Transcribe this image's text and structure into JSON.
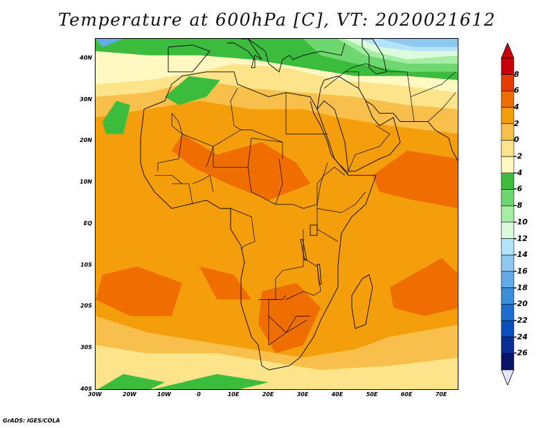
{
  "title": "Temperature at 600hPa [C], VT: 2020021612",
  "credit": "GrADS: IGES/COLA",
  "map": {
    "lon_range": [
      -30,
      75
    ],
    "lat_range": [
      -40,
      45
    ],
    "lat_ticks": [
      {
        "value": 40,
        "label": "40N"
      },
      {
        "value": 30,
        "label": "30N"
      },
      {
        "value": 20,
        "label": "20N"
      },
      {
        "value": 10,
        "label": "10N"
      },
      {
        "value": 0,
        "label": "EQ"
      },
      {
        "value": -10,
        "label": "10S"
      },
      {
        "value": -20,
        "label": "20S"
      },
      {
        "value": -30,
        "label": "30S"
      },
      {
        "value": -40,
        "label": "40S"
      }
    ],
    "lon_ticks": [
      {
        "value": -30,
        "label": "30W"
      },
      {
        "value": -20,
        "label": "20W"
      },
      {
        "value": -10,
        "label": "10W"
      },
      {
        "value": 0,
        "label": "0"
      },
      {
        "value": 10,
        "label": "10E"
      },
      {
        "value": 20,
        "label": "20E"
      },
      {
        "value": 30,
        "label": "30E"
      },
      {
        "value": 40,
        "label": "40E"
      },
      {
        "value": 50,
        "label": "50E"
      },
      {
        "value": 60,
        "label": "60E"
      },
      {
        "value": 70,
        "label": "70E"
      }
    ]
  },
  "colorbar": {
    "labels": [
      "8",
      "6",
      "4",
      "2",
      "0",
      "-2",
      "-4",
      "-6",
      "-8",
      "-10",
      "-12",
      "-14",
      "-16",
      "-18",
      "-20",
      "-22",
      "-24",
      "-26"
    ],
    "colors": [
      "#c8000a",
      "#e63c00",
      "#f06e00",
      "#f59e0b",
      "#f8c04a",
      "#fde48a",
      "#fff8c0",
      "#3cbc3c",
      "#6fd76f",
      "#a4eea4",
      "#dcfadc",
      "#b4e4fa",
      "#8cc8f0",
      "#64aae6",
      "#3c8cdc",
      "#1e6ed2",
      "#0a4ebe",
      "#082e96",
      "#0a1464"
    ],
    "tip_bottom_color": "#e6e6fa",
    "tip_top_color": "#c8000a"
  },
  "field_colors": {
    "t_plus4_6": "#f06e00",
    "t_plus2_4": "#f59e0b",
    "t_0_2": "#f8c04a",
    "t_minus2_0": "#fde48a",
    "t_minus4_minus2": "#fff8c0",
    "t_minus6_minus4": "#3cbc3c",
    "t_minus8_minus6": "#6fd76f",
    "t_minus10_minus8": "#a4eea4",
    "t_minus12_minus10": "#dcfadc",
    "t_minus14_minus12": "#b4e4fa",
    "t_minus16_minus14": "#8cc8f0",
    "t_minus18_minus16": "#64aae6",
    "t_minus20_minus18": "#3c8cdc",
    "coastline": "#000000"
  }
}
